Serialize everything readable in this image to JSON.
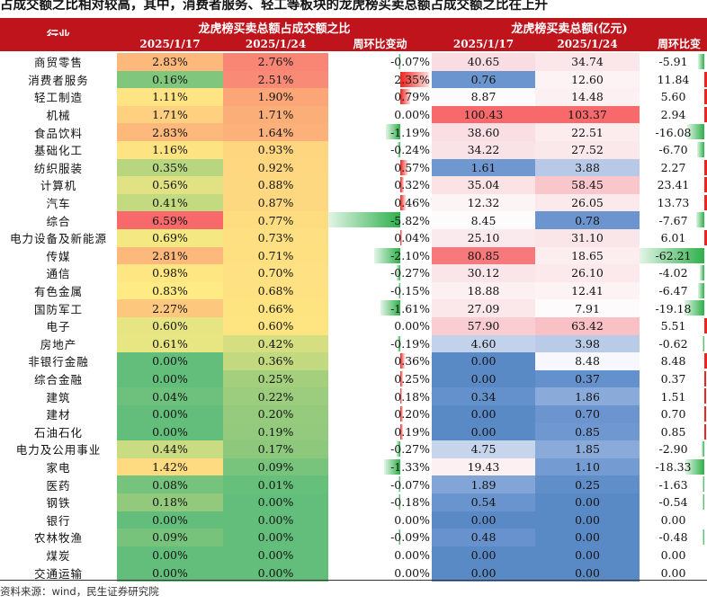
{
  "title": "占成交额之比相对较高，其中，消费者服务、轻工等板块的龙虎榜买卖总额占成交额之比在上升",
  "header": {
    "industry": "行业",
    "group_ratio": "龙虎榜买卖总额占成交额之比",
    "group_amount": "龙虎榜买卖总额(亿元)",
    "date1": "2025/1/17",
    "date2": "2025/1/24",
    "change": "周环比变动",
    "change2": "周环比变"
  },
  "rows": [
    {
      "industry": "商贸零售",
      "r1": "2.83%",
      "r2": "2.76%",
      "rc": "-0.07%",
      "a1": "40.65",
      "a2": "34.74",
      "ac": "-5.91",
      "c_r1": "#fdb97c",
      "c_r2": "#f98675",
      "c_a1": "#f9dde2",
      "c_a2": "#fbe6ea"
    },
    {
      "industry": "消费者服务",
      "r1": "0.16%",
      "r2": "2.51%",
      "rc": "2.35%",
      "a1": "0.76",
      "a2": "12.60",
      "ac": "11.84",
      "c_r1": "#80c67c",
      "c_r2": "#f98b76",
      "c_a1": "#6b95cf",
      "c_a2": "#fdf2f4"
    },
    {
      "industry": "轻工制造",
      "r1": "1.11%",
      "r2": "1.90%",
      "rc": "0.79%",
      "a1": "8.87",
      "a2": "14.48",
      "ac": "5.60",
      "c_r1": "#fee482",
      "c_r2": "#fca678",
      "c_a1": "#fefbfc",
      "c_a2": "#fcf0f2"
    },
    {
      "industry": "机械",
      "r1": "1.71%",
      "r2": "1.71%",
      "rc": "0.00%",
      "a1": "100.43",
      "a2": "103.37",
      "ac": "2.94",
      "c_r1": "#fed07f",
      "c_r2": "#fcae79",
      "c_a1": "#f8696b",
      "c_a2": "#f8696b"
    },
    {
      "industry": "食品饮料",
      "r1": "2.83%",
      "r2": "1.64%",
      "rc": "-1.19%",
      "a1": "38.60",
      "a2": "22.51",
      "ac": "-16.08",
      "c_r1": "#fdb87c",
      "c_r2": "#fcb17a",
      "c_a1": "#f9dfe3",
      "c_a2": "#fcecee"
    },
    {
      "industry": "基础化工",
      "r1": "1.16%",
      "r2": "0.93%",
      "rc": "-0.24%",
      "a1": "34.22",
      "a2": "27.52",
      "ac": "-6.70",
      "c_r1": "#fee382",
      "c_r2": "#fed680",
      "c_a1": "#fae3e6",
      "c_a2": "#fbe8eb"
    },
    {
      "industry": "纺织服装",
      "r1": "0.35%",
      "r2": "0.92%",
      "rc": "0.57%",
      "a1": "1.61",
      "a2": "3.88",
      "ac": "2.27",
      "c_r1": "#b8d67f",
      "c_r2": "#fed780",
      "c_a1": "#7098d0",
      "c_a2": "#b7c9e6"
    },
    {
      "industry": "计算机",
      "r1": "0.56%",
      "r2": "0.88%",
      "rc": "0.32%",
      "a1": "35.04",
      "a2": "58.45",
      "ac": "23.41",
      "c_r1": "#e0e283",
      "c_r2": "#fed880",
      "c_a1": "#fae2e5",
      "c_a2": "#f9c6cb"
    },
    {
      "industry": "汽车",
      "r1": "0.41%",
      "r2": "0.87%",
      "rc": "0.46%",
      "a1": "12.32",
      "a2": "26.05",
      "ac": "13.73",
      "c_r1": "#c4da80",
      "c_r2": "#fed880",
      "c_a1": "#fdf4f6",
      "c_a2": "#fbe9ec"
    },
    {
      "industry": "综合",
      "r1": "6.59%",
      "r2": "0.77%",
      "rc": "-5.82%",
      "a1": "8.45",
      "a2": "0.78",
      "ac": "-7.67",
      "c_r1": "#f8696b",
      "c_r2": "#fedd81",
      "c_a1": "#fefbfc",
      "c_a2": "#6c95cf"
    },
    {
      "industry": "电力设备及新能源",
      "r1": "0.69%",
      "r2": "0.73%",
      "rc": "0.04%",
      "a1": "25.10",
      "a2": "31.10",
      "ac": "6.01",
      "c_r1": "#f4e883",
      "c_r2": "#fedf81",
      "c_a1": "#fbeaed",
      "c_a2": "#fae5e8"
    },
    {
      "industry": "传媒",
      "r1": "2.81%",
      "r2": "0.71%",
      "rc": "-2.10%",
      "a1": "80.85",
      "a2": "18.65",
      "ac": "-62.21",
      "c_r1": "#fdb87c",
      "c_r2": "#fee081",
      "c_a1": "#f8797b",
      "c_a2": "#fcedef"
    },
    {
      "industry": "通信",
      "r1": "0.98%",
      "r2": "0.70%",
      "rc": "-0.27%",
      "a1": "30.12",
      "a2": "26.10",
      "ac": "-4.02",
      "c_r1": "#fee682",
      "c_r2": "#fee182",
      "c_a1": "#fae6e9",
      "c_a2": "#fbe9ec"
    },
    {
      "industry": "有色金属",
      "r1": "0.83%",
      "r2": "0.68%",
      "rc": "-0.15%",
      "a1": "18.88",
      "a2": "12.41",
      "ac": "-6.47",
      "c_r1": "#feeb84",
      "c_r2": "#fee281",
      "c_a1": "#fcf0f2",
      "c_a2": "#fdf3f5"
    },
    {
      "industry": "国防军工",
      "r1": "2.27%",
      "r2": "0.66%",
      "rc": "-1.61%",
      "a1": "27.09",
      "a2": "7.91",
      "ac": "-19.18",
      "c_r1": "#fdc77e",
      "c_r2": "#fee381",
      "c_a1": "#fae8eb",
      "c_a2": "#fefbfc"
    },
    {
      "industry": "电子",
      "r1": "0.60%",
      "r2": "0.60%",
      "rc": "0.00%",
      "a1": "57.90",
      "a2": "63.42",
      "ac": "5.51",
      "c_r1": "#e6e483",
      "c_r2": "#fee582",
      "c_a1": "#f9cdd2",
      "c_a2": "#f9c1c6"
    },
    {
      "industry": "房地产",
      "r1": "0.61%",
      "r2": "0.42%",
      "rc": "-0.19%",
      "a1": "4.60",
      "a2": "3.98",
      "ac": "-0.62",
      "c_r1": "#e8e583",
      "c_r2": "#d5df82",
      "c_a1": "#c2d2ea",
      "c_a2": "#b9cbe7"
    },
    {
      "industry": "非银行金融",
      "r1": "0.00%",
      "r2": "0.36%",
      "rc": "0.36%",
      "a1": "0.00",
      "a2": "8.48",
      "ac": "8.48",
      "c_r1": "#63be7b",
      "c_r2": "#c3d980",
      "c_a1": "#5a8ac6",
      "c_a2": "#f6f8fd"
    },
    {
      "industry": "综合金融",
      "r1": "0.00%",
      "r2": "0.25%",
      "rc": "0.25%",
      "a1": "0.00",
      "a2": "0.37",
      "ac": "0.37",
      "c_r1": "#63be7b",
      "c_r2": "#a4d07e",
      "c_a1": "#5a8ac6",
      "c_a2": "#6490cb"
    },
    {
      "industry": "建筑",
      "r1": "0.04%",
      "r2": "0.22%",
      "rc": "0.18%",
      "a1": "0.34",
      "a2": "1.86",
      "ac": "1.51",
      "c_r1": "#6dc17c",
      "c_r2": "#9ccd7e",
      "c_a1": "#6490cb",
      "c_a2": "#8aaad9"
    },
    {
      "industry": "建材",
      "r1": "0.00%",
      "r2": "0.20%",
      "rc": "0.20%",
      "a1": "0.00",
      "a2": "0.70",
      "ac": "0.70",
      "c_r1": "#63be7b",
      "c_r2": "#96cb7d",
      "c_a1": "#5a8ac6",
      "c_a2": "#6c95cf"
    },
    {
      "industry": "石油石化",
      "r1": "0.00%",
      "r2": "0.19%",
      "rc": "0.19%",
      "a1": "0.00",
      "a2": "0.85",
      "ac": "0.85",
      "c_r1": "#63be7b",
      "c_r2": "#94ca7d",
      "c_a1": "#5a8ac6",
      "c_a2": "#7098d0"
    },
    {
      "industry": "电力及公用事业",
      "r1": "0.44%",
      "r2": "0.17%",
      "rc": "-0.27%",
      "a1": "4.75",
      "a2": "1.85",
      "ac": "-2.90",
      "c_r1": "#cadc81",
      "c_r2": "#8ec87d",
      "c_a1": "#c6d5ec",
      "c_a2": "#8aaad9"
    },
    {
      "industry": "家电",
      "r1": "1.42%",
      "r2": "0.09%",
      "rc": "-1.33%",
      "a1": "19.43",
      "a2": "1.10",
      "ac": "-18.33",
      "c_r1": "#fedb81",
      "c_r2": "#79c47c",
      "c_a1": "#fcf0f2",
      "c_a2": "#759cd2"
    },
    {
      "industry": "医药",
      "r1": "0.08%",
      "r2": "0.01%",
      "rc": "-0.07%",
      "a1": "1.89",
      "a2": "0.25",
      "ac": "-1.63",
      "c_r1": "#75c37c",
      "c_r2": "#66bf7b",
      "c_a1": "#82a4d6",
      "c_a2": "#608ec9"
    },
    {
      "industry": "钢铁",
      "r1": "0.18%",
      "r2": "0.00%",
      "rc": "-0.18%",
      "a1": "0.54",
      "a2": "0.00",
      "ac": "-0.54",
      "c_r1": "#92c97d",
      "c_r2": "#63be7b",
      "c_a1": "#6a94ce",
      "c_a2": "#5a8ac6"
    },
    {
      "industry": "银行",
      "r1": "0.00%",
      "r2": "0.00%",
      "rc": "0.00%",
      "a1": "0.00",
      "a2": "0.00",
      "ac": "0.00",
      "c_r1": "#63be7b",
      "c_r2": "#63be7b",
      "c_a1": "#5a8ac6",
      "c_a2": "#5a8ac6"
    },
    {
      "industry": "农林牧渔",
      "r1": "0.09%",
      "r2": "0.00%",
      "rc": "-0.09%",
      "a1": "0.48",
      "a2": "0.00",
      "ac": "-0.48",
      "c_r1": "#78c37c",
      "c_r2": "#63be7b",
      "c_a1": "#6892cd",
      "c_a2": "#5a8ac6"
    },
    {
      "industry": "煤炭",
      "r1": "0.00%",
      "r2": "0.00%",
      "rc": "0.00%",
      "a1": "0.00",
      "a2": "0.00",
      "ac": "0.00",
      "c_r1": "#63be7b",
      "c_r2": "#63be7b",
      "c_a1": "#5a8ac6",
      "c_a2": "#5a8ac6"
    },
    {
      "industry": "交通运输",
      "r1": "0.00%",
      "r2": "0.00%",
      "rc": "0.00%",
      "a1": "0.00",
      "a2": "0.00",
      "ac": "0.00",
      "c_r1": "#63be7b",
      "c_r2": "#63be7b",
      "c_a1": "#5a8ac6",
      "c_a2": "#5a8ac6"
    }
  ],
  "source": "资料来源：wind，民生证券研究院",
  "colors": {
    "header_bg": "#c0141c",
    "bar_positive": "#f0241f",
    "bar_negative": "#2eb04b"
  }
}
